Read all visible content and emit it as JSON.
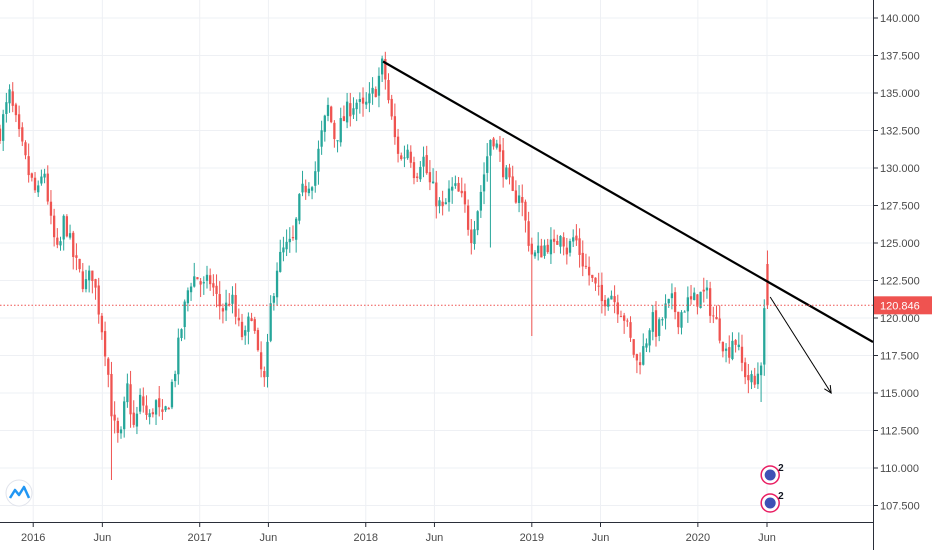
{
  "chart_data": {
    "type": "candlestick",
    "title": "",
    "xlabel": "",
    "ylabel": "",
    "ylim": [
      106.4,
      141.2
    ],
    "xlim": [
      "2015-10-20",
      "2021-01-20"
    ],
    "y_ticks": [
      "107.500",
      "110.000",
      "112.500",
      "115.000",
      "117.500",
      "120.000",
      "122.500",
      "125.000",
      "127.500",
      "130.000",
      "132.500",
      "135.000",
      "137.500",
      "140.000"
    ],
    "x_ticks": [
      {
        "label": "2016",
        "date": "2016-01-01"
      },
      {
        "label": "Jun",
        "date": "2016-06-01"
      },
      {
        "label": "2017",
        "date": "2017-01-01"
      },
      {
        "label": "Jun",
        "date": "2017-06-01"
      },
      {
        "label": "2018",
        "date": "2018-01-01"
      },
      {
        "label": "Jun",
        "date": "2018-06-01"
      },
      {
        "label": "2019",
        "date": "2019-01-01"
      },
      {
        "label": "Jun",
        "date": "2019-06-01"
      },
      {
        "label": "2020",
        "date": "2020-01-01"
      },
      {
        "label": "Jun",
        "date": "2020-06-01"
      }
    ],
    "grid": true,
    "current_price": {
      "value": 120.846,
      "label": "120.846",
      "color": "#ef5350"
    },
    "up_color": "#26a69a",
    "down_color": "#ef5350",
    "close_path": [
      [
        "2015-10-20",
        132.5
      ],
      [
        "2015-11-10",
        134.8
      ],
      [
        "2015-12-01",
        132.0
      ],
      [
        "2015-12-20",
        129.8
      ],
      [
        "2016-01-10",
        128.0
      ],
      [
        "2016-01-25",
        130.0
      ],
      [
        "2016-02-10",
        126.0
      ],
      [
        "2016-02-25",
        124.0
      ],
      [
        "2016-03-10",
        126.8
      ],
      [
        "2016-03-25",
        124.5
      ],
      [
        "2016-04-10",
        123.0
      ],
      [
        "2016-04-25",
        122.2
      ],
      [
        "2016-05-10",
        123.0
      ],
      [
        "2016-05-25",
        120.5
      ],
      [
        "2016-06-10",
        117.5
      ],
      [
        "2016-06-24",
        113.0
      ],
      [
        "2016-07-10",
        111.5
      ],
      [
        "2016-07-25",
        115.5
      ],
      [
        "2016-08-10",
        112.5
      ],
      [
        "2016-08-25",
        114.8
      ],
      [
        "2016-09-10",
        113.0
      ],
      [
        "2016-09-25",
        114.5
      ],
      [
        "2016-10-10",
        113.0
      ],
      [
        "2016-10-25",
        114.5
      ],
      [
        "2016-11-10",
        117.0
      ],
      [
        "2016-11-25",
        120.0
      ],
      [
        "2016-12-10",
        122.5
      ],
      [
        "2016-12-25",
        122.8
      ],
      [
        "2017-01-10",
        122.0
      ],
      [
        "2017-01-25",
        122.5
      ],
      [
        "2017-02-10",
        121.0
      ],
      [
        "2017-02-25",
        120.5
      ],
      [
        "2017-03-10",
        121.5
      ],
      [
        "2017-03-25",
        119.5
      ],
      [
        "2017-04-10",
        118.5
      ],
      [
        "2017-04-25",
        120.5
      ],
      [
        "2017-05-10",
        117.0
      ],
      [
        "2017-05-25",
        115.5
      ],
      [
        "2017-06-05",
        120.5
      ],
      [
        "2017-06-20",
        123.5
      ],
      [
        "2017-07-05",
        124.5
      ],
      [
        "2017-07-25",
        125.0
      ],
      [
        "2017-08-10",
        128.0
      ],
      [
        "2017-08-25",
        129.0
      ],
      [
        "2017-09-10",
        129.5
      ],
      [
        "2017-09-25",
        132.0
      ],
      [
        "2017-10-10",
        134.0
      ],
      [
        "2017-10-25",
        132.0
      ],
      [
        "2017-11-10",
        133.0
      ],
      [
        "2017-11-25",
        134.0
      ],
      [
        "2017-12-10",
        134.5
      ],
      [
        "2017-12-25",
        133.8
      ],
      [
        "2018-01-10",
        134.5
      ],
      [
        "2018-01-25",
        135.5
      ],
      [
        "2018-02-08",
        137.0
      ],
      [
        "2018-02-20",
        134.5
      ],
      [
        "2018-03-05",
        132.0
      ],
      [
        "2018-03-20",
        130.5
      ],
      [
        "2018-04-05",
        131.5
      ],
      [
        "2018-04-20",
        129.5
      ],
      [
        "2018-05-05",
        131.0
      ],
      [
        "2018-05-20",
        129.0
      ],
      [
        "2018-06-05",
        128.0
      ],
      [
        "2018-06-20",
        127.0
      ],
      [
        "2018-07-05",
        128.5
      ],
      [
        "2018-07-20",
        128.5
      ],
      [
        "2018-08-05",
        127.5
      ],
      [
        "2018-08-20",
        125.5
      ],
      [
        "2018-09-05",
        127.5
      ],
      [
        "2018-09-20",
        130.0
      ],
      [
        "2018-10-05",
        132.5
      ],
      [
        "2018-10-20",
        131.0
      ],
      [
        "2018-11-05",
        129.5
      ],
      [
        "2018-11-20",
        128.0
      ],
      [
        "2018-12-05",
        128.5
      ],
      [
        "2018-12-20",
        126.0
      ],
      [
        "2019-01-03",
        124.0
      ],
      [
        "2019-01-20",
        124.5
      ],
      [
        "2019-02-05",
        125.0
      ],
      [
        "2019-02-20",
        124.5
      ],
      [
        "2019-03-05",
        126.0
      ],
      [
        "2019-03-20",
        124.5
      ],
      [
        "2019-04-05",
        125.5
      ],
      [
        "2019-04-20",
        124.0
      ],
      [
        "2019-05-05",
        123.0
      ],
      [
        "2019-05-20",
        122.0
      ],
      [
        "2019-06-05",
        121.0
      ],
      [
        "2019-06-20",
        122.0
      ],
      [
        "2019-07-05",
        121.0
      ],
      [
        "2019-07-20",
        120.5
      ],
      [
        "2019-08-05",
        118.5
      ],
      [
        "2019-08-20",
        117.0
      ],
      [
        "2019-09-05",
        118.0
      ],
      [
        "2019-09-20",
        120.0
      ],
      [
        "2019-10-05",
        119.0
      ],
      [
        "2019-10-20",
        120.5
      ],
      [
        "2019-11-05",
        121.0
      ],
      [
        "2019-11-20",
        120.0
      ],
      [
        "2019-12-05",
        121.0
      ],
      [
        "2019-12-20",
        121.0
      ],
      [
        "2020-01-05",
        121.5
      ],
      [
        "2020-01-20",
        121.5
      ],
      [
        "2020-02-05",
        120.0
      ],
      [
        "2020-02-20",
        119.0
      ],
      [
        "2020-03-05",
        117.5
      ],
      [
        "2020-03-20",
        119.0
      ],
      [
        "2020-04-05",
        117.0
      ],
      [
        "2020-04-20",
        116.0
      ],
      [
        "2020-05-05",
        115.5
      ],
      [
        "2020-05-20",
        117.5
      ],
      [
        "2020-06-03",
        123.5
      ],
      [
        "2020-06-08",
        120.846
      ]
    ],
    "trendline": {
      "from": [
        "2018-02-08",
        137.1
      ],
      "to": [
        "2021-01-20",
        118.4
      ],
      "color": "#000000"
    },
    "projection_arrow": {
      "from": [
        "2020-06-08",
        121.4
      ],
      "to": [
        "2020-10-20",
        115.0
      ],
      "color": "#000000"
    },
    "spike_wicks": [
      {
        "date": "2016-06-24",
        "low": 109.2
      },
      {
        "date": "2018-10-02",
        "low": 124.7
      },
      {
        "date": "2019-01-03",
        "low": 118.8
      },
      {
        "date": "2020-05-22",
        "low": 114.4
      },
      {
        "date": "2020-06-03",
        "high": 124.5
      }
    ]
  },
  "icons": {
    "logo": "tradingview-logo-icon",
    "event_markers": [
      {
        "icon": "dividend-event-icon",
        "count": "2"
      },
      {
        "icon": "dividend-event-icon",
        "count": "2"
      }
    ]
  }
}
